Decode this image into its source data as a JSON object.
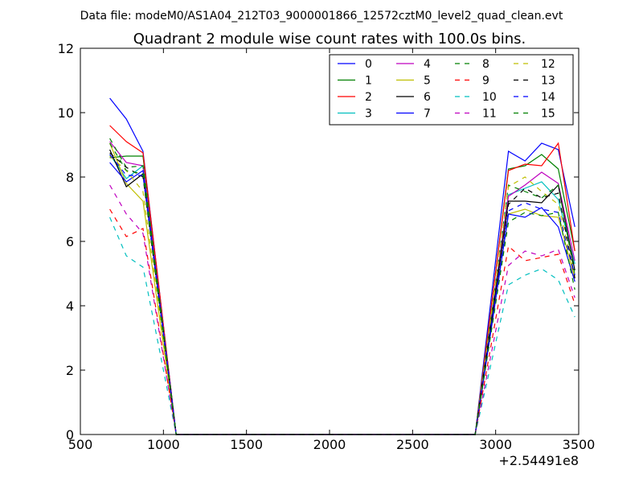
{
  "chart_data": {
    "type": "line",
    "suptitle": "Data file: modeM0/AS1A04_212T03_9000001866_12572cztM0_level2_quad_clean.evt",
    "title": "Quadrant 2 module wise count rates with 100.0s bins.",
    "xlabel": "",
    "ylabel": "",
    "x_offset_label": "+2.54491e8",
    "xlim": [
      500,
      3500
    ],
    "ylim": [
      0,
      12
    ],
    "xticks": [
      500,
      1000,
      1500,
      2000,
      2500,
      3000,
      3500
    ],
    "yticks": [
      0,
      2,
      4,
      6,
      8,
      10,
      12
    ],
    "grid": false,
    "legend_position": "top-right",
    "x": [
      677,
      777,
      877,
      977,
      1077,
      1177,
      1277,
      1377,
      1477,
      1577,
      1677,
      1777,
      1877,
      1977,
      2077,
      2177,
      2277,
      2377,
      2477,
      2577,
      2677,
      2777,
      2877,
      2977,
      3077,
      3177,
      3277,
      3377,
      3477
    ],
    "series": [
      {
        "name": "0",
        "color": "#0000ff",
        "dash": "solid",
        "values": [
          10.45,
          9.8,
          8.8,
          4.4,
          0,
          0,
          0,
          0,
          0,
          0,
          0,
          0,
          0,
          0,
          0,
          0,
          0,
          0,
          0,
          0,
          0,
          0,
          0,
          4.4,
          8.8,
          8.5,
          9.05,
          8.85,
          6.45
        ]
      },
      {
        "name": "1",
        "color": "#008000",
        "dash": "solid",
        "values": [
          8.6,
          8.65,
          8.65,
          4.3,
          0,
          0,
          0,
          0,
          0,
          0,
          0,
          0,
          0,
          0,
          0,
          0,
          0,
          0,
          0,
          0,
          0,
          0,
          0,
          4.1,
          8.25,
          8.35,
          8.7,
          8.25,
          5.7
        ]
      },
      {
        "name": "2",
        "color": "#ff0000",
        "dash": "solid",
        "values": [
          9.6,
          9.1,
          8.75,
          4.4,
          0,
          0,
          0,
          0,
          0,
          0,
          0,
          0,
          0,
          0,
          0,
          0,
          0,
          0,
          0,
          0,
          0,
          0,
          0,
          4.1,
          8.2,
          8.4,
          8.35,
          9.05,
          5.7
        ]
      },
      {
        "name": "3",
        "color": "#00bfbf",
        "dash": "solid",
        "values": [
          8.7,
          7.95,
          8.35,
          4.2,
          0,
          0,
          0,
          0,
          0,
          0,
          0,
          0,
          0,
          0,
          0,
          0,
          0,
          0,
          0,
          0,
          0,
          0,
          0,
          3.8,
          7.45,
          7.65,
          7.85,
          7.3,
          5.3
        ]
      },
      {
        "name": "4",
        "color": "#bf00bf",
        "dash": "solid",
        "values": [
          9.1,
          8.45,
          8.35,
          4.2,
          0,
          0,
          0,
          0,
          0,
          0,
          0,
          0,
          0,
          0,
          0,
          0,
          0,
          0,
          0,
          0,
          0,
          0,
          0,
          3.7,
          7.4,
          7.75,
          8.15,
          7.8,
          5.4
        ]
      },
      {
        "name": "5",
        "color": "#bfbf00",
        "dash": "solid",
        "values": [
          9.05,
          7.8,
          7.25,
          3.6,
          0,
          0,
          0,
          0,
          0,
          0,
          0,
          0,
          0,
          0,
          0,
          0,
          0,
          0,
          0,
          0,
          0,
          0,
          0,
          3.4,
          6.85,
          7.0,
          6.8,
          6.75,
          4.85
        ]
      },
      {
        "name": "6",
        "color": "#000000",
        "dash": "solid",
        "values": [
          8.85,
          7.7,
          8.1,
          4.1,
          0,
          0,
          0,
          0,
          0,
          0,
          0,
          0,
          0,
          0,
          0,
          0,
          0,
          0,
          0,
          0,
          0,
          0,
          0,
          3.6,
          7.25,
          7.25,
          7.2,
          7.75,
          5.1
        ]
      },
      {
        "name": "7",
        "color": "#0000ff",
        "dash": "solid",
        "values": [
          8.45,
          7.85,
          8.2,
          4.1,
          0,
          0,
          0,
          0,
          0,
          0,
          0,
          0,
          0,
          0,
          0,
          0,
          0,
          0,
          0,
          0,
          0,
          0,
          0,
          3.4,
          6.85,
          6.75,
          7.05,
          6.45,
          4.75
        ]
      },
      {
        "name": "8",
        "color": "#008000",
        "dash": "dashed",
        "values": [
          9.2,
          8.3,
          8.35,
          4.2,
          0,
          0,
          0,
          0,
          0,
          0,
          0,
          0,
          0,
          0,
          0,
          0,
          0,
          0,
          0,
          0,
          0,
          0,
          0,
          3.8,
          7.75,
          7.55,
          7.35,
          7.75,
          4.95
        ]
      },
      {
        "name": "9",
        "color": "#ff0000",
        "dash": "dashed",
        "values": [
          7.0,
          6.15,
          6.4,
          3.2,
          0,
          0,
          0,
          0,
          0,
          0,
          0,
          0,
          0,
          0,
          0,
          0,
          0,
          0,
          0,
          0,
          0,
          0,
          0,
          2.9,
          5.85,
          5.4,
          5.5,
          5.6,
          4.05
        ]
      },
      {
        "name": "10",
        "color": "#00bfbf",
        "dash": "dashed",
        "values": [
          6.75,
          5.55,
          5.2,
          2.6,
          0,
          0,
          0,
          0,
          0,
          0,
          0,
          0,
          0,
          0,
          0,
          0,
          0,
          0,
          0,
          0,
          0,
          0,
          0,
          2.3,
          4.65,
          4.95,
          5.15,
          4.8,
          3.65
        ]
      },
      {
        "name": "11",
        "color": "#bf00bf",
        "dash": "dashed",
        "values": [
          7.75,
          6.85,
          6.25,
          3.1,
          0,
          0,
          0,
          0,
          0,
          0,
          0,
          0,
          0,
          0,
          0,
          0,
          0,
          0,
          0,
          0,
          0,
          0,
          0,
          2.6,
          5.25,
          5.7,
          5.55,
          5.75,
          4.25
        ]
      },
      {
        "name": "12",
        "color": "#bfbf00",
        "dash": "dashed",
        "values": [
          8.65,
          8.2,
          7.55,
          3.8,
          0,
          0,
          0,
          0,
          0,
          0,
          0,
          0,
          0,
          0,
          0,
          0,
          0,
          0,
          0,
          0,
          0,
          0,
          0,
          3.8,
          7.7,
          8.0,
          7.55,
          7.15,
          4.9
        ]
      },
      {
        "name": "13",
        "color": "#000000",
        "dash": "dashed",
        "values": [
          8.75,
          8.3,
          8.0,
          4.0,
          0,
          0,
          0,
          0,
          0,
          0,
          0,
          0,
          0,
          0,
          0,
          0,
          0,
          0,
          0,
          0,
          0,
          0,
          0,
          3.6,
          7.15,
          7.65,
          7.35,
          7.5,
          4.85
        ]
      },
      {
        "name": "14",
        "color": "#0000ff",
        "dash": "dashed",
        "values": [
          8.7,
          8.05,
          8.05,
          4.0,
          0,
          0,
          0,
          0,
          0,
          0,
          0,
          0,
          0,
          0,
          0,
          0,
          0,
          0,
          0,
          0,
          0,
          0,
          0,
          3.5,
          6.95,
          7.2,
          7.0,
          6.9,
          4.95
        ]
      },
      {
        "name": "15",
        "color": "#008000",
        "dash": "dashed",
        "values": [
          9.05,
          8.2,
          8.1,
          4.0,
          0,
          0,
          0,
          0,
          0,
          0,
          0,
          0,
          0,
          0,
          0,
          0,
          0,
          0,
          0,
          0,
          0,
          0,
          0,
          3.3,
          6.6,
          6.9,
          6.8,
          6.9,
          4.5
        ]
      }
    ]
  }
}
